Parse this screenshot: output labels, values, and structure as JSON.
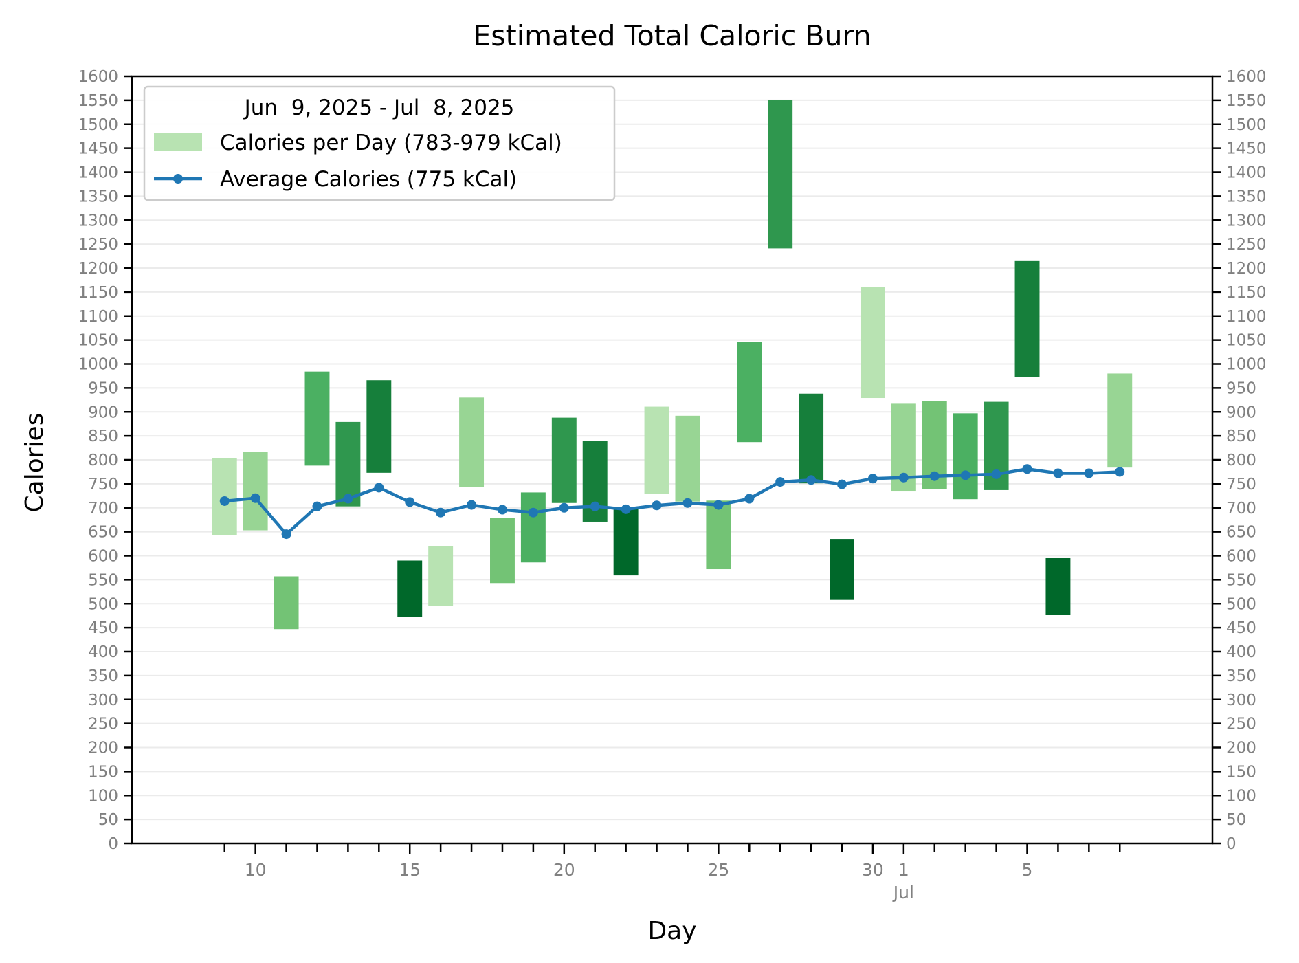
{
  "chart_data": {
    "type": "bar",
    "title": "Estimated Total Caloric Burn",
    "xlabel": "Day",
    "ylabel": "Calories",
    "ylim": [
      0,
      1600
    ],
    "y_tick_step": 50,
    "y_ticks_mirrored_right": true,
    "grid": "horizontal",
    "legend_placement": "top-left",
    "legend": {
      "title": "Jun  9, 2025 - Jul  8, 2025",
      "bar_label": "Calories per Day (783-979 kCal)",
      "line_label": "Average Calories (775 kCal)"
    },
    "x_tick_labels": [
      {
        "date": "2025-06-10",
        "label": "10"
      },
      {
        "date": "2025-06-15",
        "label": "15"
      },
      {
        "date": "2025-06-20",
        "label": "20"
      },
      {
        "date": "2025-06-25",
        "label": "25"
      },
      {
        "date": "2025-06-30",
        "label": "30"
      },
      {
        "date": "2025-07-01",
        "label": "1",
        "sublabel": "Jul"
      },
      {
        "date": "2025-07-05",
        "label": "5"
      }
    ],
    "xlim": [
      "2025-06-06",
      "2025-07-11"
    ],
    "colors": {
      "shade_1": "#b8e3b2",
      "shade_2": "#98d594",
      "shade_3": "#73c375",
      "shade_4": "#4bb062",
      "shade_5": "#2f974e",
      "shade_6": "#167f3b",
      "shade_7": "#00682a",
      "average_line": "#1f77b4"
    },
    "bars": [
      {
        "date": "2025-06-09",
        "low": 643,
        "high": 803,
        "shade": "shade_1"
      },
      {
        "date": "2025-06-10",
        "low": 653,
        "high": 816,
        "shade": "shade_2"
      },
      {
        "date": "2025-06-11",
        "low": 447,
        "high": 557,
        "shade": "shade_3"
      },
      {
        "date": "2025-06-12",
        "low": 788,
        "high": 984,
        "shade": "shade_4"
      },
      {
        "date": "2025-06-13",
        "low": 703,
        "high": 879,
        "shade": "shade_5"
      },
      {
        "date": "2025-06-14",
        "low": 773,
        "high": 966,
        "shade": "shade_6"
      },
      {
        "date": "2025-06-15",
        "low": 472,
        "high": 590,
        "shade": "shade_7"
      },
      {
        "date": "2025-06-16",
        "low": 496,
        "high": 620,
        "shade": "shade_1"
      },
      {
        "date": "2025-06-17",
        "low": 744,
        "high": 930,
        "shade": "shade_2"
      },
      {
        "date": "2025-06-18",
        "low": 543,
        "high": 679,
        "shade": "shade_3"
      },
      {
        "date": "2025-06-19",
        "low": 586,
        "high": 732,
        "shade": "shade_4"
      },
      {
        "date": "2025-06-20",
        "low": 710,
        "high": 888,
        "shade": "shade_5"
      },
      {
        "date": "2025-06-21",
        "low": 671,
        "high": 839,
        "shade": "shade_6"
      },
      {
        "date": "2025-06-22",
        "low": 559,
        "high": 699,
        "shade": "shade_7"
      },
      {
        "date": "2025-06-23",
        "low": 729,
        "high": 911,
        "shade": "shade_1"
      },
      {
        "date": "2025-06-24",
        "low": 713,
        "high": 892,
        "shade": "shade_2"
      },
      {
        "date": "2025-06-25",
        "low": 572,
        "high": 715,
        "shade": "shade_3"
      },
      {
        "date": "2025-06-26",
        "low": 837,
        "high": 1046,
        "shade": "shade_4"
      },
      {
        "date": "2025-06-27",
        "low": 1241,
        "high": 1551,
        "shade": "shade_5"
      },
      {
        "date": "2025-06-28",
        "low": 751,
        "high": 938,
        "shade": "shade_6"
      },
      {
        "date": "2025-06-29",
        "low": 508,
        "high": 635,
        "shade": "shade_7"
      },
      {
        "date": "2025-06-30",
        "low": 929,
        "high": 1161,
        "shade": "shade_1"
      },
      {
        "date": "2025-07-01",
        "low": 734,
        "high": 917,
        "shade": "shade_2"
      },
      {
        "date": "2025-07-02",
        "low": 739,
        "high": 923,
        "shade": "shade_3"
      },
      {
        "date": "2025-07-03",
        "low": 718,
        "high": 897,
        "shade": "shade_4"
      },
      {
        "date": "2025-07-04",
        "low": 737,
        "high": 921,
        "shade": "shade_5"
      },
      {
        "date": "2025-07-05",
        "low": 973,
        "high": 1216,
        "shade": "shade_6"
      },
      {
        "date": "2025-07-06",
        "low": 476,
        "high": 595,
        "shade": "shade_7"
      },
      {
        "date": "2025-07-08",
        "low": 784,
        "high": 980,
        "shade": "shade_2"
      }
    ],
    "average_series": {
      "x": [
        "2025-06-09",
        "2025-06-10",
        "2025-06-11",
        "2025-06-12",
        "2025-06-13",
        "2025-06-14",
        "2025-06-15",
        "2025-06-16",
        "2025-06-17",
        "2025-06-18",
        "2025-06-19",
        "2025-06-20",
        "2025-06-21",
        "2025-06-22",
        "2025-06-23",
        "2025-06-24",
        "2025-06-25",
        "2025-06-26",
        "2025-06-27",
        "2025-06-28",
        "2025-06-29",
        "2025-06-30",
        "2025-07-01",
        "2025-07-02",
        "2025-07-03",
        "2025-07-04",
        "2025-07-05",
        "2025-07-06",
        "2025-07-07",
        "2025-07-08"
      ],
      "y": [
        714,
        720,
        645,
        703,
        719,
        742,
        712,
        690,
        706,
        696,
        690,
        700,
        703,
        697,
        705,
        710,
        706,
        719,
        754,
        758,
        749,
        761,
        763,
        766,
        768,
        770,
        781,
        772,
        772,
        775
      ]
    }
  }
}
